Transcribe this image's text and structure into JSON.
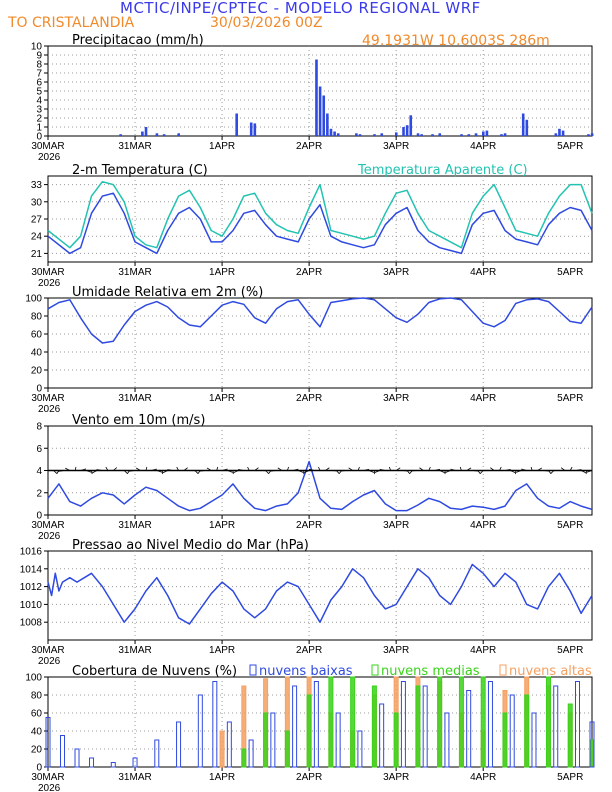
{
  "header": {
    "title": "MCTIC/INPE/CPTEC - MODELO REGIONAL WRF",
    "location": "TO CRISTALANDIA",
    "run": "30/03/2026 00Z",
    "coords": "49.1931W 10.6003S 286m"
  },
  "colors": {
    "title": "#3a3ae8",
    "orange": "#f08a2a",
    "blue": "#2f4ae0",
    "teal": "#22c3b2",
    "green": "#3ad21a",
    "orangeBar": "#f5a060",
    "grid": "#9a9a9a"
  },
  "x_axis": {
    "labels": [
      "30MAR",
      "31MAR",
      "1APR",
      "2APR",
      "3APR",
      "4APR",
      "5APR"
    ],
    "year": "2026",
    "range_hours": [
      0,
      150
    ]
  },
  "chart_data": [
    {
      "type": "bar",
      "title": "Precipitacao (mm/h)",
      "ylim": [
        0,
        10
      ],
      "yticks": [
        0,
        1,
        2,
        3,
        4,
        5,
        6,
        7,
        8,
        9,
        10
      ],
      "hours": [
        20,
        26,
        27,
        30,
        32,
        36,
        52,
        56,
        57,
        74,
        75,
        76,
        77,
        78,
        79,
        80,
        85,
        86,
        90,
        92,
        96,
        98,
        99,
        100,
        102,
        103,
        106,
        108,
        114,
        116,
        118,
        120,
        121,
        125,
        126,
        131,
        132,
        140,
        141,
        142,
        149,
        150
      ],
      "values": [
        0.2,
        0.5,
        1.0,
        0.3,
        0.2,
        0.3,
        2.5,
        1.5,
        1.4,
        8.5,
        5.5,
        4.5,
        2.5,
        0.8,
        0.5,
        0.3,
        0.3,
        0.2,
        0.2,
        0.3,
        0.4,
        1.0,
        1.2,
        2.3,
        0.3,
        0.2,
        0.2,
        0.3,
        0.2,
        0.2,
        0.3,
        0.5,
        0.6,
        0.2,
        0.3,
        2.5,
        1.8,
        0.3,
        0.8,
        0.6,
        0.2,
        0.3
      ]
    },
    {
      "type": "line",
      "title": "2-m Temperatura (C)",
      "legend": "Temperatura Aparente (C)",
      "ylim": [
        19.5,
        34.5
      ],
      "yticks": [
        21,
        24,
        27,
        30,
        33
      ],
      "series": [
        {
          "name": "2-m Temperatura (C)",
          "x": [
            0,
            6,
            9,
            12,
            15,
            18,
            21,
            24,
            27,
            30,
            33,
            36,
            39,
            42,
            45,
            48,
            51,
            54,
            57,
            60,
            63,
            66,
            69,
            72,
            75,
            78,
            81,
            84,
            87,
            90,
            93,
            96,
            99,
            102,
            105,
            108,
            111,
            114,
            117,
            120,
            123,
            126,
            129,
            132,
            135,
            138,
            141,
            144,
            147,
            150
          ],
          "values": [
            24,
            21,
            22,
            28,
            31,
            31.5,
            28,
            23,
            22,
            21,
            25,
            28,
            29,
            27,
            23,
            23,
            25,
            28,
            28.5,
            26,
            24,
            23.5,
            23,
            27,
            29.5,
            24,
            23,
            22.5,
            22,
            22.5,
            26,
            28,
            29,
            25,
            23,
            22,
            21.5,
            21,
            26,
            28,
            28.5,
            25,
            23.5,
            23,
            22.5,
            26,
            28,
            29,
            28.5,
            25
          ]
        },
        {
          "name": "Temperatura Aparente (C)",
          "x": [
            0,
            6,
            9,
            12,
            15,
            18,
            21,
            24,
            27,
            30,
            33,
            36,
            39,
            42,
            45,
            48,
            51,
            54,
            57,
            60,
            63,
            66,
            69,
            72,
            75,
            78,
            81,
            84,
            87,
            90,
            93,
            96,
            99,
            102,
            105,
            108,
            111,
            114,
            117,
            120,
            123,
            126,
            129,
            132,
            135,
            138,
            141,
            144,
            147,
            150
          ],
          "values": [
            25,
            22,
            24,
            31,
            33.5,
            33,
            30,
            24,
            22.5,
            22,
            27,
            31,
            32,
            29,
            25,
            24,
            27,
            31,
            31.5,
            28,
            26,
            25,
            24.5,
            29,
            33,
            25,
            24.5,
            24,
            23.5,
            24,
            28,
            31.5,
            32,
            28,
            25,
            24,
            23,
            22,
            28,
            31,
            33,
            29,
            25,
            24.5,
            24,
            28,
            31,
            33,
            33,
            28
          ]
        }
      ]
    },
    {
      "type": "line",
      "title": "Umidade Relativa em 2m (%)",
      "ylim": [
        0,
        100
      ],
      "yticks": [
        0,
        20,
        40,
        60,
        80,
        100
      ],
      "series": [
        {
          "name": "Umidade Relativa em 2m (%)",
          "x": [
            0,
            3,
            6,
            9,
            12,
            15,
            18,
            21,
            24,
            27,
            30,
            33,
            36,
            39,
            42,
            45,
            48,
            51,
            54,
            57,
            60,
            63,
            66,
            69,
            72,
            75,
            78,
            81,
            84,
            87,
            90,
            93,
            96,
            99,
            102,
            105,
            108,
            111,
            114,
            117,
            120,
            123,
            126,
            129,
            132,
            135,
            138,
            141,
            144,
            147,
            150
          ],
          "values": [
            88,
            95,
            98,
            78,
            60,
            50,
            52,
            70,
            85,
            92,
            96,
            90,
            78,
            70,
            68,
            80,
            92,
            96,
            93,
            78,
            72,
            88,
            96,
            98,
            82,
            68,
            95,
            97,
            99,
            100,
            98,
            88,
            78,
            73,
            82,
            95,
            99,
            100,
            98,
            85,
            72,
            68,
            75,
            94,
            98,
            99,
            96,
            85,
            74,
            72,
            90
          ]
        }
      ]
    },
    {
      "type": "line",
      "title": "Vento em 10m (m/s)",
      "ylim": [
        0,
        8
      ],
      "yticks": [
        0,
        2,
        4,
        6,
        8
      ],
      "series": [
        {
          "name": "Vento em 10m (m/s)",
          "x": [
            0,
            3,
            6,
            9,
            12,
            15,
            18,
            21,
            24,
            27,
            30,
            33,
            36,
            39,
            42,
            45,
            48,
            51,
            54,
            57,
            60,
            63,
            66,
            69,
            72,
            75,
            78,
            81,
            84,
            87,
            90,
            93,
            96,
            99,
            102,
            105,
            108,
            111,
            114,
            117,
            120,
            123,
            126,
            129,
            132,
            135,
            138,
            141,
            144,
            147,
            150
          ],
          "values": [
            1.5,
            2.8,
            1.2,
            0.8,
            1.5,
            2.0,
            1.8,
            1.0,
            1.8,
            2.5,
            2.2,
            1.5,
            0.8,
            0.4,
            0.6,
            1.2,
            1.8,
            2.8,
            1.5,
            0.6,
            0.4,
            0.8,
            1.0,
            2.0,
            4.8,
            1.5,
            0.6,
            0.5,
            1.2,
            1.8,
            2.2,
            1.0,
            0.4,
            0.4,
            0.9,
            1.5,
            1.2,
            0.6,
            0.5,
            0.8,
            0.7,
            0.5,
            0.8,
            2.2,
            2.8,
            1.5,
            0.8,
            0.6,
            1.2,
            0.8,
            0.5
          ]
        }
      ]
    },
    {
      "type": "line",
      "title": "Pressao ao Nivel Medio do Mar (hPa)",
      "ylim": [
        1006,
        1016
      ],
      "yticks": [
        1008,
        1010,
        1012,
        1014,
        1016
      ],
      "series": [
        {
          "name": "Pressao ao Nivel Medio do Mar (hPa)",
          "x": [
            0,
            1,
            2,
            3,
            4,
            6,
            8,
            10,
            12,
            15,
            18,
            21,
            24,
            27,
            30,
            33,
            36,
            39,
            42,
            45,
            48,
            51,
            54,
            57,
            60,
            63,
            66,
            69,
            72,
            75,
            78,
            81,
            84,
            87,
            90,
            93,
            96,
            99,
            102,
            105,
            108,
            111,
            114,
            117,
            120,
            123,
            126,
            129,
            132,
            135,
            138,
            141,
            144,
            147,
            150
          ],
          "values": [
            1012.5,
            1011,
            1013.5,
            1011.5,
            1012.5,
            1013,
            1012.5,
            1013,
            1013.5,
            1012,
            1010,
            1008,
            1009.5,
            1011.5,
            1013,
            1011,
            1008.5,
            1007.8,
            1009.5,
            1011.2,
            1012.5,
            1011.5,
            1009.5,
            1008.5,
            1009.5,
            1011.5,
            1012.5,
            1012,
            1010,
            1008,
            1010.5,
            1012,
            1014,
            1013,
            1011,
            1009.5,
            1010,
            1012,
            1014,
            1013,
            1011,
            1010,
            1012,
            1014.5,
            1013.5,
            1012,
            1013.5,
            1012.5,
            1010,
            1009.5,
            1012,
            1013.5,
            1011.5,
            1009,
            1011
          ]
        }
      ]
    },
    {
      "type": "bar",
      "title": "Cobertura de Nuvens (%)",
      "legend": [
        "nuvens baixas",
        "nuvens medias",
        "nuvens altas"
      ],
      "ylim": [
        0,
        100
      ],
      "yticks": [
        0,
        20,
        40,
        60,
        80,
        100
      ],
      "series": [
        {
          "name": "nuvens altas",
          "x": [
            48,
            54,
            60,
            66,
            72,
            78,
            84,
            90,
            96,
            102,
            108,
            114,
            120,
            126,
            132,
            138,
            144,
            150
          ],
          "values": [
            40,
            90,
            98,
            100,
            100,
            60,
            40,
            80,
            100,
            100,
            95,
            60,
            40,
            85,
            100,
            90,
            60,
            30
          ]
        },
        {
          "name": "nuvens medias",
          "x": [
            54,
            60,
            66,
            72,
            78,
            84,
            90,
            96,
            102,
            108,
            114,
            120,
            126,
            132,
            138,
            144,
            150
          ],
          "values": [
            20,
            60,
            40,
            80,
            100,
            100,
            90,
            60,
            90,
            100,
            100,
            100,
            60,
            80,
            100,
            70,
            30
          ]
        },
        {
          "name": "nuvens baixas",
          "x": [
            0,
            4,
            8,
            12,
            18,
            24,
            30,
            36,
            42,
            46,
            50,
            56,
            62,
            68,
            74,
            80,
            86,
            92,
            98,
            104,
            110,
            116,
            122,
            128,
            134,
            140,
            146,
            150
          ],
          "values": [
            55,
            35,
            20,
            10,
            5,
            10,
            30,
            50,
            80,
            95,
            50,
            30,
            60,
            90,
            95,
            60,
            40,
            70,
            95,
            90,
            60,
            85,
            95,
            80,
            60,
            90,
            95,
            50
          ]
        }
      ]
    }
  ]
}
